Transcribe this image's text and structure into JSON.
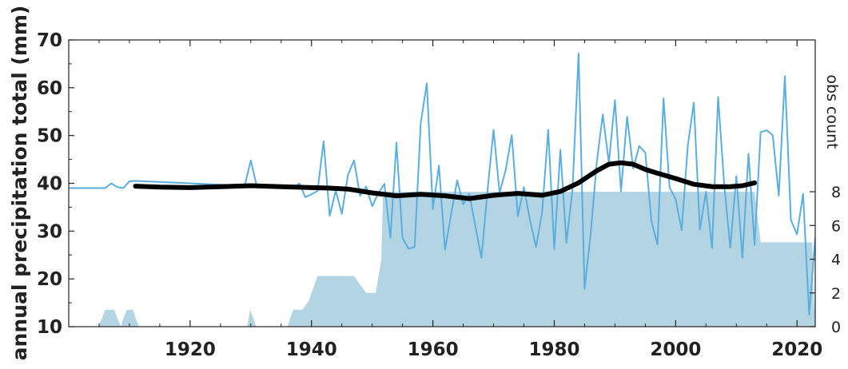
{
  "chart_data": {
    "type": "line",
    "ylabel": "annual precipitation total (mm)",
    "y2label": "obs count",
    "xlim": [
      1900,
      2023
    ],
    "ylim": [
      10,
      70
    ],
    "y2lim": [
      0,
      17
    ],
    "xticks": [
      1920,
      1940,
      1960,
      1980,
      2000,
      2020
    ],
    "yticks": [
      10,
      20,
      30,
      40,
      50,
      60,
      70
    ],
    "y2ticks": [
      0,
      2,
      4,
      6,
      8
    ],
    "colors": {
      "annual": "#5aaee0",
      "smooth": "#000000",
      "count": "#b3d4e3"
    },
    "series": [
      {
        "kind": "line",
        "axis": "left",
        "x": [
          1900,
          1901,
          1902,
          1903,
          1904,
          1905,
          1906,
          1907,
          1908,
          1909,
          1910,
          1911,
          1929,
          1930,
          1931,
          1932,
          1933,
          1934,
          1935,
          1936,
          1937,
          1938,
          1939,
          1940,
          1941,
          1942,
          1943,
          1944,
          1945,
          1946,
          1947,
          1948,
          1949,
          1950,
          1951,
          1952,
          1953,
          1954,
          1955,
          1956,
          1957,
          1958,
          1959,
          1960,
          1961,
          1962,
          1963,
          1964,
          1965,
          1966,
          1967,
          1968,
          1969,
          1970,
          1971,
          1972,
          1973,
          1974,
          1975,
          1976,
          1977,
          1978,
          1979,
          1980,
          1981,
          1982,
          1983,
          1984,
          1985,
          1986,
          1987,
          1988,
          1989,
          1990,
          1991,
          1992,
          1993,
          1994,
          1995,
          1996,
          1997,
          1998,
          1999,
          2000,
          2001,
          2002,
          2003,
          2004,
          2005,
          2006,
          2007,
          2008,
          2009,
          2010,
          2011,
          2012,
          2013,
          2014,
          2015,
          2016,
          2017,
          2018,
          2019,
          2020,
          2021,
          2022,
          2023
        ],
        "y": [
          39,
          39,
          39,
          39,
          39,
          39,
          39,
          40,
          39.2,
          39,
          40.4,
          40.5,
          39.5,
          44.8,
          39.3,
          39.2,
          39.1,
          39,
          39,
          39,
          39,
          40,
          37.1,
          37.7,
          38.4,
          48.8,
          33.2,
          38.5,
          33.6,
          41.7,
          44.8,
          37.4,
          39.3,
          35.2,
          37.9,
          39.9,
          28.6,
          48.5,
          28.6,
          26.3,
          26.7,
          52.6,
          60.9,
          34.6,
          43.7,
          26.1,
          33.5,
          40.6,
          35.6,
          37.8,
          31,
          24.4,
          38.5,
          51.2,
          38,
          42.8,
          50.1,
          33.1,
          39.2,
          32.3,
          26.7,
          33.9,
          51.2,
          26.3,
          47,
          27.6,
          38.7,
          67.2,
          17.9,
          29.4,
          44.3,
          54.4,
          44.3,
          57.4,
          38.3,
          53.9,
          43.1,
          47.8,
          46.4,
          32.1,
          27.2,
          57.8,
          39.1,
          36.7,
          30.2,
          47.8,
          56.9,
          30.3,
          38.3,
          26.4,
          58.1,
          39.7,
          26.5,
          41.5,
          24.4,
          46.2,
          27.1,
          50.7,
          51.1,
          50.1,
          37.4,
          62.4,
          32.3,
          29.3,
          37.8,
          12.5,
          28.6
        ]
      },
      {
        "kind": "line",
        "axis": "left",
        "x": [
          1911,
          1915,
          1920,
          1925,
          1930,
          1935,
          1940,
          1943,
          1946,
          1950,
          1954,
          1958,
          1962,
          1966,
          1970,
          1974,
          1978,
          1981,
          1984,
          1987,
          1989,
          1991,
          1993,
          1995,
          1997,
          2000,
          2003,
          2006,
          2009,
          2011,
          2013
        ],
        "y": [
          39.4,
          39.2,
          39.1,
          39.3,
          39.5,
          39.3,
          39.1,
          39,
          38.8,
          38,
          37.4,
          37.7,
          37.4,
          36.8,
          37.5,
          37.9,
          37.5,
          38.3,
          40.1,
          42.6,
          44,
          44.3,
          44,
          42.9,
          42.1,
          41,
          39.8,
          39.3,
          39.3,
          39.5,
          40.1
        ]
      },
      {
        "kind": "area",
        "axis": "right",
        "x": [
          1904.8,
          1905.5,
          1906,
          1906.5,
          1907,
          1907.5,
          1908,
          1908.6,
          1909,
          1909.6,
          1910,
          1910.6,
          1911,
          1911.6,
          1929.4,
          1929.9,
          1930.4,
          1930.9,
          1936,
          1936.5,
          1937,
          1938.5,
          1939.5,
          1940,
          1941,
          1942,
          1947,
          1948,
          1949,
          1949.5,
          1950,
          1950.6,
          1951.5,
          1951.8,
          1952,
          2012,
          2013,
          2014,
          2015,
          2022.5,
          2022.8,
          2023
        ],
        "y": [
          0,
          0.5,
          1,
          1,
          1,
          1,
          0.5,
          0,
          0.5,
          1,
          1,
          1,
          0.5,
          0,
          0,
          1,
          0.5,
          0,
          0,
          0.5,
          1,
          1,
          1.5,
          2,
          3,
          3,
          3,
          2.5,
          2,
          2,
          2,
          2,
          4,
          8,
          8,
          8,
          8,
          5,
          5,
          5,
          1,
          3
        ]
      }
    ]
  }
}
